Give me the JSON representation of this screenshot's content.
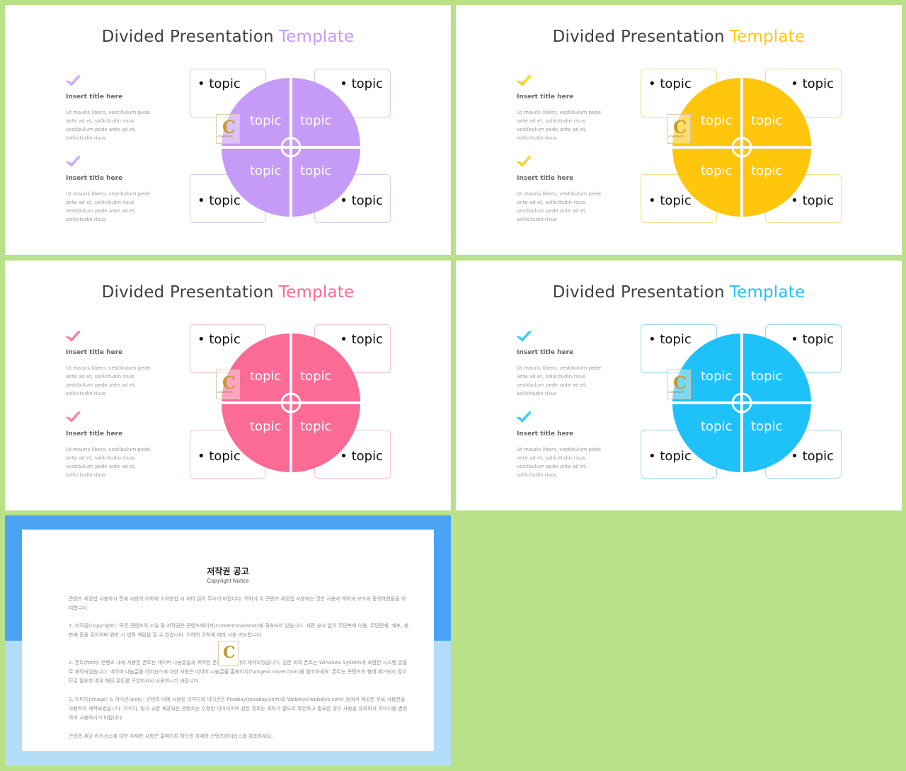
{
  "slides": [
    {
      "title_main": "Divided Presentation",
      "title_accent": "Template",
      "color": "#c69af7",
      "border": "#d9c9ee",
      "items": [
        {
          "title": "Insert title here",
          "body": "Ut mauris libero, vestibulum pede ante ad et, sollicitudin risus vestibulum pede ante ad et, sollicitudin risus"
        },
        {
          "title": "Insert title here",
          "body": "Ut mauris libero, vestibulum pede ante ad et, sollicitudin risus vestibulum pede ante ad et, sollicitudin risus"
        }
      ],
      "box_labels": [
        "topic",
        "topic",
        "topic",
        "topic"
      ],
      "quad_labels": [
        "topic",
        "topic",
        "topic",
        "topic"
      ]
    },
    {
      "title_main": "Divided Presentation",
      "title_accent": "Template",
      "color": "#ffc60b",
      "border": "#f4dc8c",
      "items": [
        {
          "title": "Insert title here",
          "body": "Ut mauris libero, vestibulum pede ante ad et, sollicitudin risus vestibulum pede ante ad et, sollicitudin risus"
        },
        {
          "title": "Insert title here",
          "body": "Ut mauris libero, vestibulum pede ante ad et, sollicitudin risus vestibulum pede ante ad et, sollicitudin risus"
        }
      ],
      "box_labels": [
        "topic",
        "topic",
        "topic",
        "topic"
      ],
      "quad_labels": [
        "topic",
        "topic",
        "topic",
        "topic"
      ]
    },
    {
      "title_main": "Divided Presentation",
      "title_accent": "Template",
      "color": "#fc6a96",
      "border": "#f2c1d1",
      "items": [
        {
          "title": "Insert title here",
          "body": "Ut mauris libero, vestibulum pede ante ad et, sollicitudin risus vestibulum pede ante ad et, sollicitudin risus"
        },
        {
          "title": "Insert title here",
          "body": "Ut mauris libero, vestibulum pede ante ad et, sollicitudin risus vestibulum pede ante ad et, sollicitudin risus"
        }
      ],
      "box_labels": [
        "topic",
        "topic",
        "topic",
        "topic"
      ],
      "quad_labels": [
        "topic",
        "topic",
        "topic",
        "topic"
      ]
    },
    {
      "title_main": "Divided Presentation",
      "title_accent": "Template",
      "color": "#1fc1f9",
      "border": "#9fd9ee",
      "items": [
        {
          "title": "Insert title here",
          "body": "Ut mauris libero, vestibulum pede ante ad et, sollicitudin risus vestibulum pede ante ad et, sollicitudin risus"
        },
        {
          "title": "Insert title here",
          "body": "Ut mauris libero, vestibulum pede ante ad et, sollicitudin risus vestibulum pede ante ad et, sollicitudin risus"
        }
      ],
      "box_labels": [
        "topic",
        "topic",
        "topic",
        "topic"
      ],
      "quad_labels": [
        "topic",
        "topic",
        "topic",
        "topic"
      ]
    }
  ],
  "copyright": {
    "title": "저작권 공고",
    "subtitle": "Copyright Notice",
    "paragraphs": [
      "콘텐츠 세공업 사용하시 전에 사용의 이하에 소하방법 시 세이 읽어 주시기 바랍니다. 귀하가 이 콘텐츠 세공업 사용하는 것은 사용자 계약과 보조에 동의하셨음을 의미합니다.",
      "1. 저작권(copyright): 모든 콘텐츠의 소유 및 저작권은 콘텐츠메이커(Contentstakeout)에 귀속되어 있습니다. 사전 승낙 없이 무단복제 이용, 무단전재, 배포, 재판매 등을 금지하며 위반 시 법적 책임을 질 수 있습니다. 이하의 규칙에 따라 사용 가능합니다.",
      "2. 폰트(font): 콘텐츠 내에 사용된 폰트는 네이버 나눔글꼴과 제작된 폰트를 사용하여 제작되었습니다. 원본 외의 폰트는 Windows System에 포함된 시스템 글꼴로 제작되었습니다. 네이버 나눔글꼴 라이선스에 대한 사항은 네이버 나눔글꼴 홈페이지(hangeul.naver.com)를 참조하세요. 폰트는 콘텐츠의 형태 제거되지 않으므로 필요한 경우 해당 폰트를 구입하셔서 사용하시기 바랍니다.",
      "3. 이미지(image) & 아이콘(icon): 콘텐츠 내에 사용된 이미지와 아이콘은 Pixabay(pixabay.com)와 Webolys(webolys.com) 등에서 제공한 무료 사용분을 사용하여 제작되었습니다. 이미지, 링크 교환 제공되는 콘텐츠는 수정한 이미지이며 원본 경로는 귀하가 별도로 확인하고 필요한 경우 사용을 유의하셔 이미지를 변경하여 사용하시기 바랍니다.",
      "콘텐츠 세공 라이선스에 대한 자세한 사항은 홈페이지 하단의 자세한 콘텐츠라이선스를 참조하세요."
    ]
  }
}
